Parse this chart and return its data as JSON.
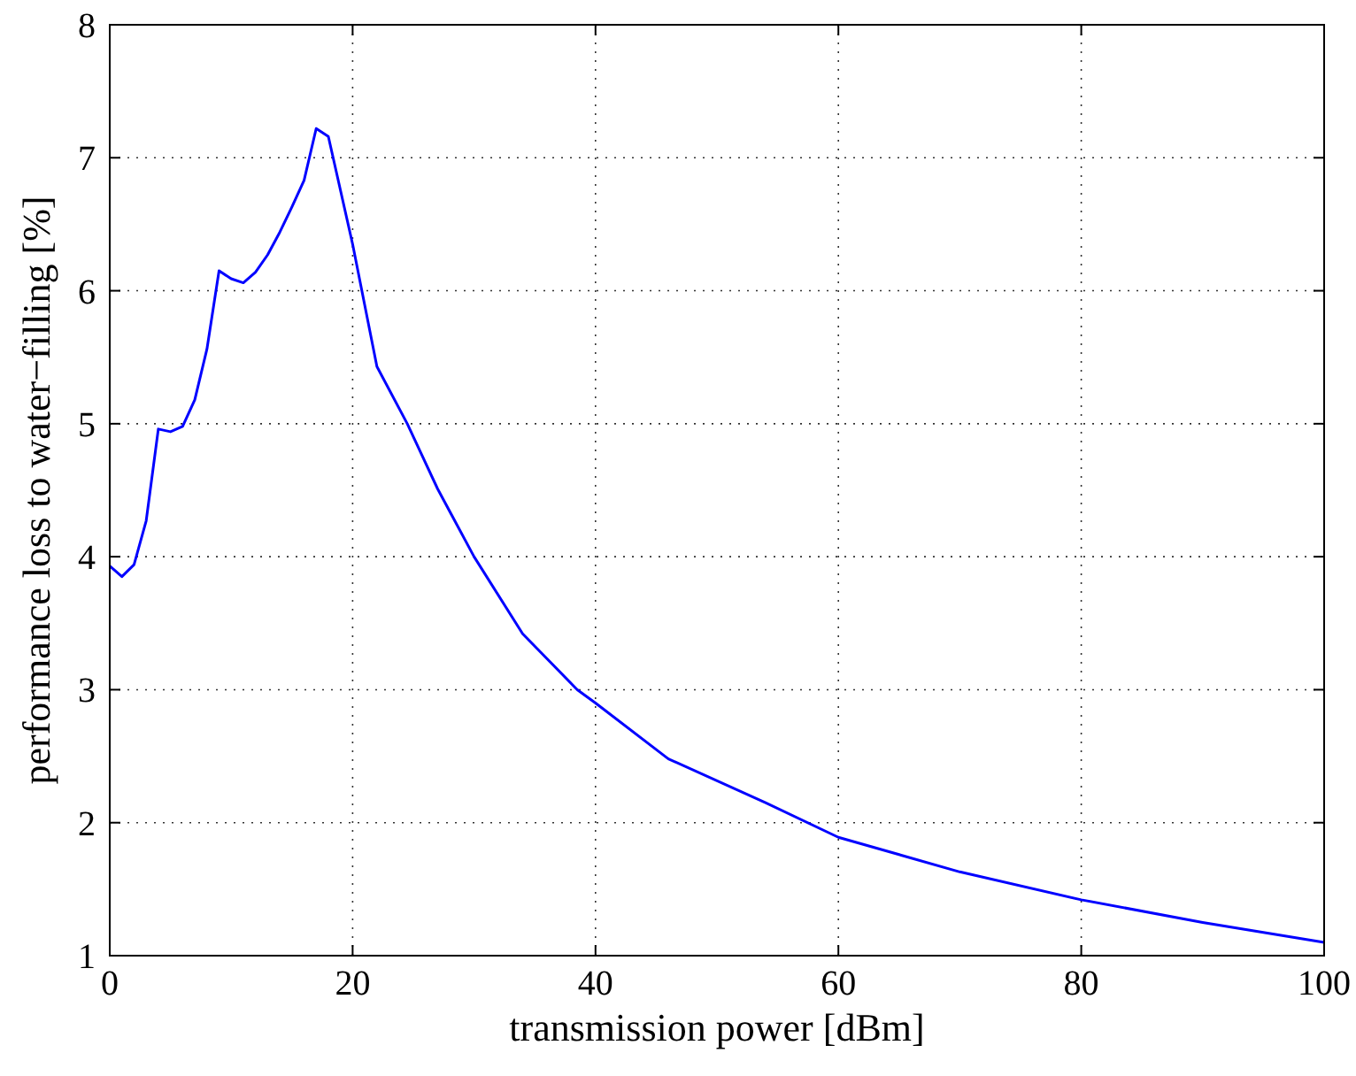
{
  "chart_data": {
    "type": "line",
    "xlabel": "transmission power [dBm]",
    "ylabel": "performance loss to water−filling [%]",
    "x": [
      0,
      1,
      2,
      3,
      4,
      5,
      6,
      7,
      8,
      9,
      10,
      11,
      12,
      13,
      14,
      15,
      16,
      17,
      18,
      20,
      22,
      24.5,
      27,
      30,
      34,
      38.5,
      40,
      46,
      54,
      60,
      70,
      80,
      90,
      100
    ],
    "series": [
      {
        "color": "#0000ff",
        "values": [
          3.93,
          3.85,
          3.94,
          4.27,
          4.96,
          4.94,
          4.98,
          5.18,
          5.56,
          6.15,
          6.09,
          6.06,
          6.14,
          6.27,
          6.44,
          6.63,
          6.83,
          7.22,
          7.16,
          6.35,
          5.43,
          5.0,
          4.51,
          4.0,
          3.42,
          3.0,
          2.9,
          2.48,
          2.15,
          1.89,
          1.63,
          1.42,
          1.25,
          1.1
        ]
      }
    ],
    "xlim": [
      0,
      100
    ],
    "xticks": [
      0,
      20,
      40,
      60,
      80,
      100
    ],
    "ylim": [
      1,
      8
    ],
    "yticks": [
      1,
      2,
      3,
      4,
      5,
      6,
      7,
      8
    ],
    "grid": true,
    "line_style": "solid",
    "marker": "none"
  }
}
